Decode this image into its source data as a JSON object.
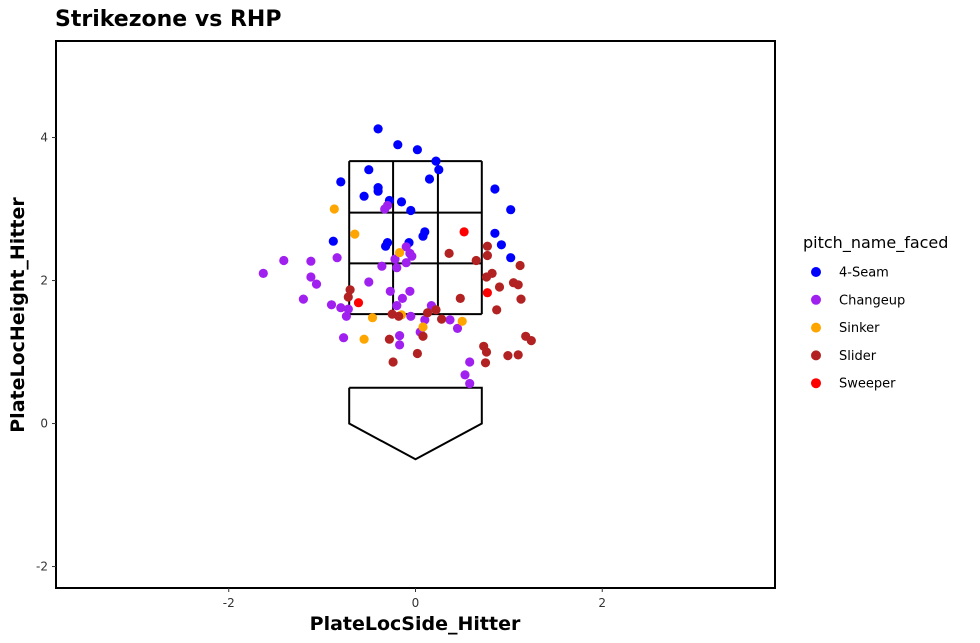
{
  "chart_data": {
    "type": "scatter",
    "title": "Strikezone vs RHP",
    "xlabel": "PlateLocSide_Hitter",
    "ylabel": "PlateLocHeight_Hitter",
    "xlim": [
      -3.85,
      3.85
    ],
    "ylim": [
      -2.3,
      5.35
    ],
    "xticks": [
      -2,
      0,
      2
    ],
    "yticks": [
      -2,
      0,
      2,
      4
    ],
    "grid": false,
    "legend": {
      "title": "pitch_name_faced",
      "position": "right",
      "entries": [
        "4-Seam",
        "Changeup",
        "Sinker",
        "Slider",
        "Sweeper"
      ]
    },
    "colors": {
      "4-Seam": "#0000ff",
      "Changeup": "#a020f0",
      "Sinker": "#ffa500",
      "Slider": "#b22222",
      "Sweeper": "#ff0000"
    },
    "strike_zone": {
      "x": [
        -0.71,
        -0.24,
        0.24,
        0.71
      ],
      "y": [
        1.53,
        2.24,
        2.95,
        3.67
      ]
    },
    "home_plate": [
      [
        -0.71,
        0.5
      ],
      [
        0.71,
        0.5
      ],
      [
        0.71,
        0.0
      ],
      [
        0.0,
        -0.5
      ],
      [
        -0.71,
        0.0
      ],
      [
        -0.71,
        0.5
      ]
    ],
    "series": [
      {
        "name": "4-Seam",
        "points": [
          [
            -0.4,
            4.12
          ],
          [
            -0.19,
            3.9
          ],
          [
            0.02,
            3.83
          ],
          [
            0.22,
            3.67
          ],
          [
            0.25,
            3.55
          ],
          [
            -0.5,
            3.55
          ],
          [
            0.15,
            3.42
          ],
          [
            -0.8,
            3.38
          ],
          [
            -0.4,
            3.3
          ],
          [
            -0.4,
            3.25
          ],
          [
            -0.55,
            3.18
          ],
          [
            0.85,
            3.28
          ],
          [
            -0.28,
            3.12
          ],
          [
            -0.15,
            3.1
          ],
          [
            -0.05,
            2.98
          ],
          [
            1.02,
            2.99
          ],
          [
            0.1,
            2.68
          ],
          [
            0.08,
            2.62
          ],
          [
            0.85,
            2.66
          ],
          [
            -0.07,
            2.53
          ],
          [
            -0.3,
            2.53
          ],
          [
            -0.32,
            2.48
          ],
          [
            0.92,
            2.5
          ],
          [
            -0.88,
            2.55
          ],
          [
            1.02,
            2.32
          ]
        ]
      },
      {
        "name": "Changeup",
        "points": [
          [
            -0.3,
            3.05
          ],
          [
            -0.33,
            3.0
          ],
          [
            -0.1,
            2.47
          ],
          [
            -0.06,
            2.38
          ],
          [
            -0.04,
            2.34
          ],
          [
            -0.84,
            2.32
          ],
          [
            -1.12,
            2.27
          ],
          [
            -1.41,
            2.28
          ],
          [
            -0.22,
            2.3
          ],
          [
            -0.36,
            2.2
          ],
          [
            -0.2,
            2.18
          ],
          [
            -0.1,
            2.25
          ],
          [
            -1.63,
            2.1
          ],
          [
            -1.12,
            2.05
          ],
          [
            -1.06,
            1.95
          ],
          [
            -0.5,
            1.98
          ],
          [
            -0.27,
            1.85
          ],
          [
            -0.06,
            1.85
          ],
          [
            -0.14,
            1.75
          ],
          [
            -1.2,
            1.74
          ],
          [
            -0.9,
            1.66
          ],
          [
            -0.72,
            1.6
          ],
          [
            -0.8,
            1.62
          ],
          [
            -0.2,
            1.65
          ],
          [
            0.17,
            1.65
          ],
          [
            -0.74,
            1.5
          ],
          [
            -0.05,
            1.5
          ],
          [
            0.1,
            1.45
          ],
          [
            0.37,
            1.45
          ],
          [
            0.45,
            1.33
          ],
          [
            0.05,
            1.28
          ],
          [
            -0.77,
            1.2
          ],
          [
            -0.17,
            1.23
          ],
          [
            -0.17,
            1.1
          ],
          [
            0.58,
            0.86
          ],
          [
            0.53,
            0.68
          ],
          [
            0.58,
            0.56
          ]
        ]
      },
      {
        "name": "Sinker",
        "points": [
          [
            -0.87,
            3.0
          ],
          [
            -0.65,
            2.65
          ],
          [
            -0.17,
            2.39
          ],
          [
            -0.46,
            1.48
          ],
          [
            -0.15,
            1.52
          ],
          [
            0.5,
            1.43
          ],
          [
            0.08,
            1.35
          ],
          [
            -0.55,
            1.18
          ]
        ]
      },
      {
        "name": "Slider",
        "points": [
          [
            0.36,
            2.38
          ],
          [
            0.77,
            2.48
          ],
          [
            0.77,
            2.35
          ],
          [
            0.65,
            2.28
          ],
          [
            1.12,
            2.21
          ],
          [
            0.82,
            2.1
          ],
          [
            0.76,
            2.05
          ],
          [
            1.05,
            1.97
          ],
          [
            1.1,
            1.94
          ],
          [
            0.9,
            1.91
          ],
          [
            -0.7,
            1.87
          ],
          [
            -0.72,
            1.77
          ],
          [
            0.48,
            1.75
          ],
          [
            1.13,
            1.74
          ],
          [
            0.87,
            1.59
          ],
          [
            0.22,
            1.59
          ],
          [
            0.13,
            1.55
          ],
          [
            -0.25,
            1.53
          ],
          [
            -0.18,
            1.5
          ],
          [
            0.28,
            1.46
          ],
          [
            1.18,
            1.22
          ],
          [
            0.08,
            1.22
          ],
          [
            -0.28,
            1.18
          ],
          [
            1.24,
            1.16
          ],
          [
            0.73,
            1.08
          ],
          [
            0.76,
            1.0
          ],
          [
            0.02,
            0.98
          ],
          [
            1.1,
            0.96
          ],
          [
            0.99,
            0.95
          ],
          [
            -0.24,
            0.86
          ],
          [
            0.75,
            0.85
          ]
        ]
      },
      {
        "name": "Sweeper",
        "points": [
          [
            0.52,
            2.68
          ],
          [
            0.77,
            1.83
          ],
          [
            -0.61,
            1.69
          ]
        ]
      }
    ]
  }
}
